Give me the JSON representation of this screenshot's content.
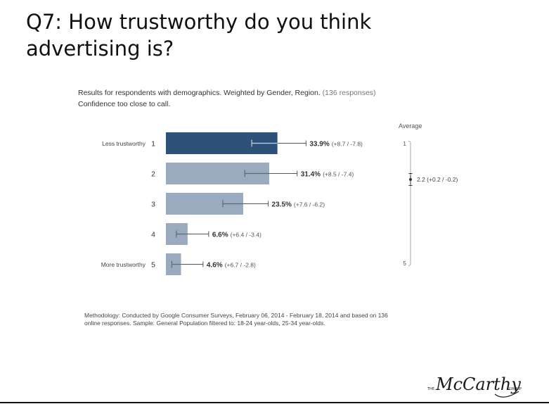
{
  "title": "Q7: How trustworthy do you think advertising is?",
  "subtitle": {
    "line1": "Results for respondents with demographics. Weighted by Gender, Region.",
    "responses": "(136 responses)",
    "line2": "Confidence too close to call."
  },
  "average_label": "Average",
  "methodology": "Methodology: Conducted by Google Consumer Surveys, February 06, 2014 - February 18, 2014 and based on 136 online responses. Sample: General Population filtered to: 18-24 year-olds, 25-34 year-olds.",
  "logo": {
    "text": "McCarthy",
    "prefix": "THE",
    "suffix": "GROUP"
  },
  "colors": {
    "highlight_bar": "#2e5178",
    "bar": "#9aaabf",
    "text": "#333333"
  },
  "chart_data": {
    "type": "bar",
    "orientation": "horizontal",
    "categories": [
      "1",
      "2",
      "3",
      "4",
      "5"
    ],
    "category_labels": [
      "Less trustworthy",
      "",
      "",
      "",
      "More trustworthy"
    ],
    "values": [
      33.9,
      31.4,
      23.5,
      6.6,
      4.6
    ],
    "value_labels": [
      "33.9%",
      "31.4%",
      "23.5%",
      "6.6%",
      "4.6%"
    ],
    "error_plus": [
      8.7,
      8.5,
      7.6,
      6.4,
      6.7
    ],
    "error_minus": [
      7.8,
      7.4,
      6.2,
      3.4,
      2.8
    ],
    "error_labels": [
      "(+8.7 / -7.8)",
      "(+8.5 / -7.4)",
      "(+7.6 / -6.2)",
      "(+6.4 / -3.4)",
      "(+6.7 / -2.8)"
    ],
    "xlim": [
      0,
      50
    ],
    "highlight_index": 0,
    "average": {
      "value": 2.2,
      "plus": 0.2,
      "minus": 0.2,
      "label": "2.2 (+0.2 / -0.2)",
      "scale": [
        1,
        5
      ],
      "scale_labels": [
        "1",
        "5"
      ]
    }
  }
}
